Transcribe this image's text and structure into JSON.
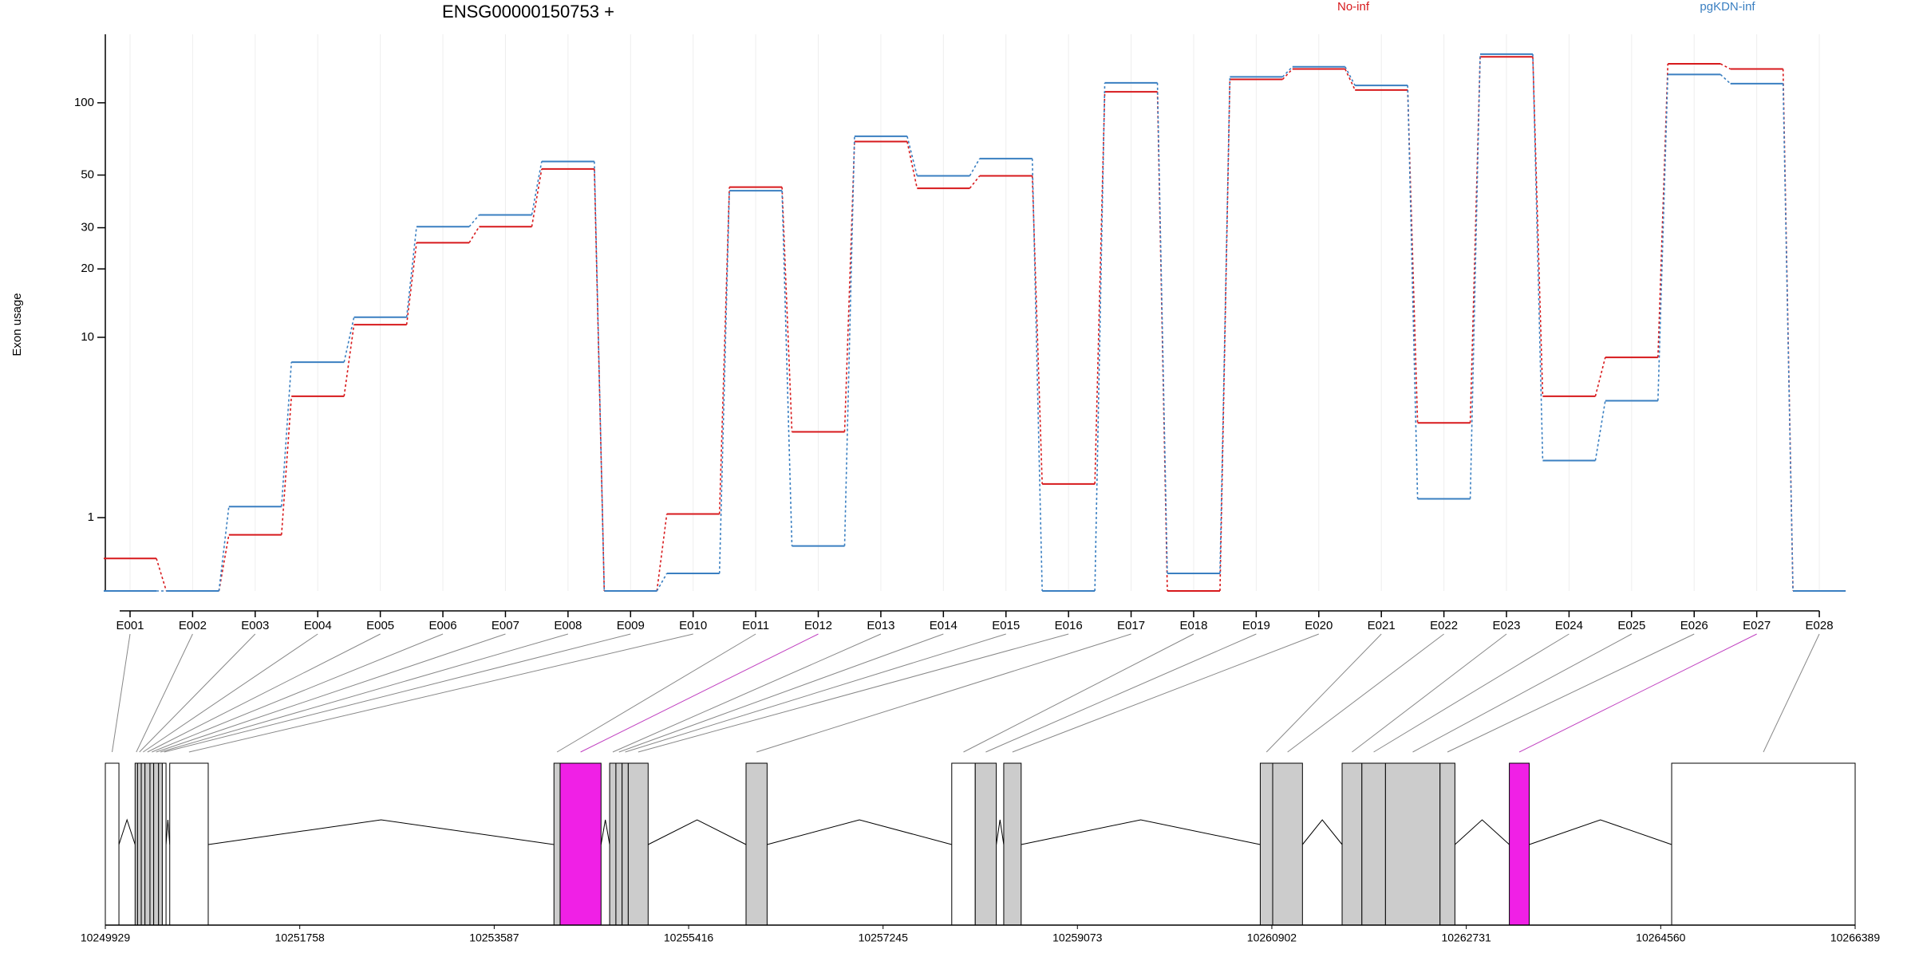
{
  "chart_data": [
    {
      "type": "step",
      "title": "ENSG00000150753 +",
      "y_label": "Exon usage",
      "categories": [
        "E001",
        "E002",
        "E003",
        "E004",
        "E005",
        "E006",
        "E007",
        "E008",
        "E009",
        "E010",
        "E011",
        "E012",
        "E013",
        "E014",
        "E015",
        "E016",
        "E017",
        "E018",
        "E019",
        "E020",
        "E021",
        "E022",
        "E023",
        "E024",
        "E025",
        "E026",
        "E027",
        "E028"
      ],
      "series": [
        {
          "name": "No-inf",
          "color": "#d7191c",
          "values": [
            0.36,
            0,
            0.7,
            5.3,
            11.4,
            25.9,
            30.3,
            53,
            0,
            1.07,
            44.5,
            3.5,
            69,
            44,
            49.6,
            1.75,
            111,
            0,
            125,
            138,
            113,
            3.9,
            155,
            5.3,
            8.1,
            145,
            138,
            0
          ]
        },
        {
          "name": "pgKDN-inf",
          "color": "#3a7fc1",
          "values": [
            0,
            0,
            1.22,
            7.7,
            12.3,
            30.3,
            34,
            57,
            0,
            0.18,
            43,
            0.53,
            72.6,
            49.6,
            58.6,
            0,
            121,
            0.18,
            128,
            141,
            118,
            1.39,
            159,
            2.43,
            5.04,
            131,
            120,
            0
          ]
        }
      ],
      "yscale": "log",
      "log_pseudocount": 1,
      "ylim": [
        0,
        192
      ],
      "yticks": [
        1,
        10,
        20,
        30,
        50,
        100
      ],
      "grid": true,
      "legend": "top"
    },
    {
      "type": "gene-model",
      "xlim": [
        10249929,
        10266389
      ],
      "xticks": [
        10249929,
        10251758,
        10253587,
        10255416,
        10257245,
        10259073,
        10260902,
        10262731,
        10264560,
        10266389
      ],
      "exons": [
        {
          "start": 10249929,
          "end": 10250057,
          "color": "#ffffff"
        },
        {
          "start": 10250209,
          "end": 10250232,
          "color": "#cccccc"
        },
        {
          "start": 10250232,
          "end": 10250267,
          "color": "#cccccc"
        },
        {
          "start": 10250267,
          "end": 10250302,
          "color": "#cccccc"
        },
        {
          "start": 10250302,
          "end": 10250349,
          "color": "#cccccc"
        },
        {
          "start": 10250349,
          "end": 10250384,
          "color": "#cccccc"
        },
        {
          "start": 10250384,
          "end": 10250430,
          "color": "#cccccc"
        },
        {
          "start": 10250430,
          "end": 10250465,
          "color": "#cccccc"
        },
        {
          "start": 10250465,
          "end": 10250500,
          "color": "#ffffff"
        },
        {
          "start": 10250535,
          "end": 10250897,
          "color": "#ffffff"
        },
        {
          "start": 10254149,
          "end": 10254207,
          "color": "#cccccc"
        },
        {
          "start": 10254207,
          "end": 10254592,
          "color": "#f020e6"
        },
        {
          "start": 10254673,
          "end": 10254732,
          "color": "#cccccc"
        },
        {
          "start": 10254732,
          "end": 10254790,
          "color": "#cccccc"
        },
        {
          "start": 10254790,
          "end": 10254848,
          "color": "#cccccc"
        },
        {
          "start": 10254848,
          "end": 10255035,
          "color": "#cccccc"
        },
        {
          "start": 10255956,
          "end": 10256154,
          "color": "#cccccc"
        },
        {
          "start": 10257891,
          "end": 10258112,
          "color": "#ffffff"
        },
        {
          "start": 10258112,
          "end": 10258310,
          "color": "#cccccc"
        },
        {
          "start": 10258380,
          "end": 10258544,
          "color": "#cccccc"
        },
        {
          "start": 10260793,
          "end": 10260910,
          "color": "#cccccc"
        },
        {
          "start": 10260910,
          "end": 10261190,
          "color": "#cccccc"
        },
        {
          "start": 10261563,
          "end": 10261749,
          "color": "#cccccc"
        },
        {
          "start": 10261749,
          "end": 10261971,
          "color": "#cccccc"
        },
        {
          "start": 10261971,
          "end": 10262484,
          "color": "#cccccc"
        },
        {
          "start": 10262484,
          "end": 10262624,
          "color": "#cccccc"
        },
        {
          "start": 10263136,
          "end": 10263323,
          "color": "#f020e6"
        },
        {
          "start": 10264663,
          "end": 10266389,
          "color": "#ffffff"
        }
      ]
    }
  ]
}
